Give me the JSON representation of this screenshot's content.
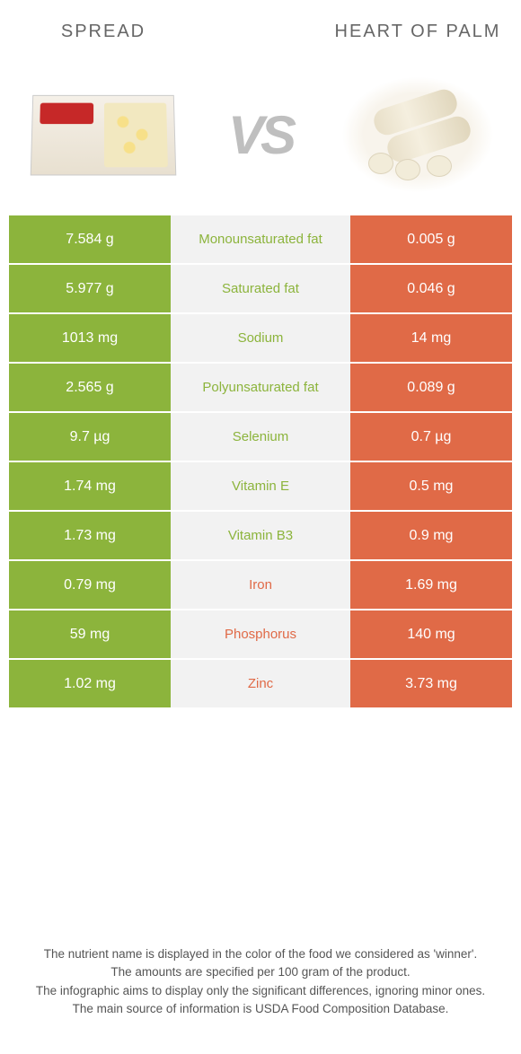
{
  "header": {
    "left_title": "Spread",
    "right_title": "Heart of palm",
    "vs_label": "VS"
  },
  "colors": {
    "left": "#8cb43c",
    "right": "#e06a47",
    "mid_bg": "#f2f2f2",
    "row_border": "#ffffff"
  },
  "rows": [
    {
      "left": "7.584 g",
      "label": "Monounsaturated fat",
      "right": "0.005 g",
      "winner": "left"
    },
    {
      "left": "5.977 g",
      "label": "Saturated fat",
      "right": "0.046 g",
      "winner": "left"
    },
    {
      "left": "1013 mg",
      "label": "Sodium",
      "right": "14 mg",
      "winner": "left"
    },
    {
      "left": "2.565 g",
      "label": "Polyunsaturated fat",
      "right": "0.089 g",
      "winner": "left"
    },
    {
      "left": "9.7 µg",
      "label": "Selenium",
      "right": "0.7 µg",
      "winner": "left"
    },
    {
      "left": "1.74 mg",
      "label": "Vitamin E",
      "right": "0.5 mg",
      "winner": "left"
    },
    {
      "left": "1.73 mg",
      "label": "Vitamin B3",
      "right": "0.9 mg",
      "winner": "left"
    },
    {
      "left": "0.79 mg",
      "label": "Iron",
      "right": "1.69 mg",
      "winner": "right"
    },
    {
      "left": "59 mg",
      "label": "Phosphorus",
      "right": "140 mg",
      "winner": "right"
    },
    {
      "left": "1.02 mg",
      "label": "Zinc",
      "right": "3.73 mg",
      "winner": "right"
    }
  ],
  "footnotes": [
    "The nutrient name is displayed in the color of the food we considered as 'winner'.",
    "The amounts are specified per 100 gram of the product.",
    "The infographic aims to display only the significant differences, ignoring minor ones.",
    "The main source of information is USDA Food Composition Database."
  ]
}
